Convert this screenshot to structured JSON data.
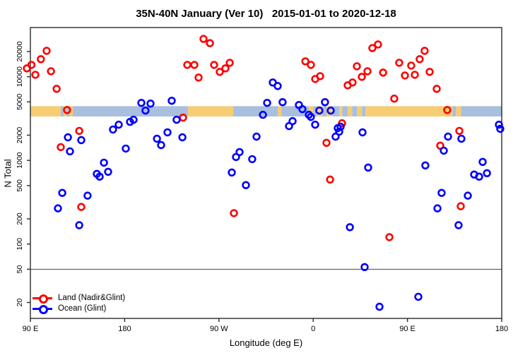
{
  "chart_data": {
    "type": "scatter",
    "title": "35N-40N January (Ver 10)   2015-01-01 to 2020-12-18",
    "xlabel": "Longitude (deg E)",
    "ylabel": "N Total",
    "x_axis": {
      "ticks": [
        90,
        180,
        270,
        360,
        450,
        540
      ],
      "tick_labels": [
        "90 E",
        "180",
        "90 W",
        "0",
        "90 E",
        "180"
      ],
      "range_deg_wrapped": [
        90,
        540
      ]
    },
    "y_axis": {
      "scale": "log",
      "ticks": [
        20,
        50,
        100,
        200,
        500,
        1000,
        2000,
        5000,
        10000,
        20000
      ],
      "tick_labels": [
        "20",
        "50",
        "100",
        "200",
        "500",
        "1000",
        "2000",
        "5000",
        "10000",
        "20000"
      ],
      "range": [
        13,
        38000
      ]
    },
    "reference_line_y": 50,
    "colors": {
      "land_points": "#FF0000",
      "ocean_points": "#0000FF",
      "land_strip": "#F6CD72",
      "ocean_strip": "#A9BFDD",
      "axis": "#2b2b2b"
    },
    "land_ocean_strip": {
      "value_range": [
        3350,
        4450
      ],
      "segments": [
        {
          "type": "land",
          "from": 90,
          "to": 119
        },
        {
          "type": "ocean",
          "from": 119,
          "to": 121.7
        },
        {
          "type": "land",
          "from": 121.7,
          "to": 124.4
        },
        {
          "type": "ocean",
          "from": 124.4,
          "to": 127.8
        },
        {
          "type": "land",
          "from": 127.8,
          "to": 130.5
        },
        {
          "type": "ocean",
          "from": 130.5,
          "to": 240.5
        },
        {
          "type": "land",
          "from": 240.5,
          "to": 283.7
        },
        {
          "type": "ocean",
          "from": 283.7,
          "to": 326.2
        },
        {
          "type": "land",
          "from": 326.2,
          "to": 329.6
        },
        {
          "type": "ocean",
          "from": 329.6,
          "to": 355.9
        },
        {
          "type": "land",
          "from": 355.9,
          "to": 360
        },
        {
          "type": "ocean",
          "from": 360,
          "to": 363.4
        },
        {
          "type": "land",
          "from": 363.4,
          "to": 368.8
        },
        {
          "type": "ocean",
          "from": 368.8,
          "to": 372.8
        },
        {
          "type": "land",
          "from": 372.8,
          "to": 378.2
        },
        {
          "type": "ocean",
          "from": 378.2,
          "to": 385
        },
        {
          "type": "land",
          "from": 385,
          "to": 387.7
        },
        {
          "type": "ocean",
          "from": 387.7,
          "to": 393.1
        },
        {
          "type": "land",
          "from": 393.1,
          "to": 397.2
        },
        {
          "type": "ocean",
          "from": 397.2,
          "to": 401.9
        },
        {
          "type": "land",
          "from": 401.9,
          "to": 406.6
        },
        {
          "type": "ocean",
          "from": 406.6,
          "to": 410
        },
        {
          "type": "land",
          "from": 410,
          "to": 493
        },
        {
          "type": "ocean",
          "from": 493,
          "to": 496.4
        },
        {
          "type": "land",
          "from": 496.4,
          "to": 501.1
        },
        {
          "type": "ocean",
          "from": 501.1,
          "to": 540
        }
      ]
    },
    "series": [
      {
        "name": "Land (Nadir&Glint)",
        "color": "#FF0000",
        "points": [
          [
            105.5,
            20400
          ],
          [
            100,
            16200
          ],
          [
            91,
            13850
          ],
          [
            86.6,
            12600
          ],
          [
            94.7,
            10560
          ],
          [
            109.6,
            11640
          ],
          [
            115,
            7175
          ],
          [
            125,
            4000
          ],
          [
            136.6,
            2250
          ],
          [
            119,
            1440
          ],
          [
            239.8,
            13850
          ],
          [
            235.7,
            3245
          ],
          [
            255.3,
            28300
          ],
          [
            261.4,
            25200
          ],
          [
            246.5,
            13850
          ],
          [
            265.4,
            13850
          ],
          [
            270.8,
            11420
          ],
          [
            276.2,
            12600
          ],
          [
            280.3,
            14680
          ],
          [
            250.6,
            9780
          ],
          [
            352.5,
            15260
          ],
          [
            357.8,
            13850
          ],
          [
            361.9,
            9400
          ],
          [
            366.6,
            10160
          ],
          [
            392.9,
            7900
          ],
          [
            397.6,
            8540
          ],
          [
            372.7,
            1620
          ],
          [
            387.5,
            2780
          ],
          [
            416.5,
            22000
          ],
          [
            421.9,
            24300
          ],
          [
            466.4,
            20400
          ],
          [
            461.7,
            16200
          ],
          [
            442.1,
            14680
          ],
          [
            453.6,
            13580
          ],
          [
            401.7,
            13320
          ],
          [
            411.8,
            11640
          ],
          [
            406.4,
            9970
          ],
          [
            426.7,
            11200
          ],
          [
            447.6,
            10360
          ],
          [
            457,
            10560
          ],
          [
            471.2,
            11420
          ],
          [
            477.9,
            7175
          ],
          [
            437.4,
            5470
          ],
          [
            488,
            4000
          ],
          [
            499.5,
            2250
          ],
          [
            481.3,
            1500
          ],
          [
            138.6,
            278
          ],
          [
            284.3,
            234
          ],
          [
            376.1,
            590
          ],
          [
            500.9,
            283
          ],
          [
            432.7,
            121
          ]
        ]
      },
      {
        "name": "Ocean (Glint)",
        "color": "#0000FF",
        "points": [
          [
            125.8,
            1887
          ],
          [
            127.8,
            1282
          ],
          [
            138.6,
            1747
          ],
          [
            168.9,
            2335
          ],
          [
            174.3,
            2673
          ],
          [
            185.1,
            2889
          ],
          [
            188.5,
            3062
          ],
          [
            195.9,
            4870
          ],
          [
            199.9,
            3937
          ],
          [
            204.7,
            4777
          ],
          [
            224.9,
            5160
          ],
          [
            229.6,
            3062
          ],
          [
            181.1,
            1385
          ],
          [
            160.2,
            940
          ],
          [
            164.2,
            731
          ],
          [
            153.4,
            690
          ],
          [
            156.1,
            639
          ],
          [
            210.8,
            1816
          ],
          [
            214.8,
            1525
          ],
          [
            220.9,
            2161
          ],
          [
            235.1,
            1887
          ],
          [
            120.4,
            409
          ],
          [
            144.6,
            379
          ],
          [
            116.3,
            267
          ],
          [
            136.6,
            168
          ],
          [
            321.4,
            8540
          ],
          [
            326.1,
            7750
          ],
          [
            316,
            4870
          ],
          [
            330.8,
            4966
          ],
          [
            346.4,
            4596
          ],
          [
            349.7,
            4093
          ],
          [
            312,
            3504
          ],
          [
            355.8,
            3504
          ],
          [
            357.8,
            3308
          ],
          [
            365.9,
            3937
          ],
          [
            371.3,
            4966
          ],
          [
            376.7,
            3937
          ],
          [
            361.9,
            2673
          ],
          [
            340.3,
            2945
          ],
          [
            336.9,
            2572
          ],
          [
            383.5,
            2427
          ],
          [
            305.9,
            1925
          ],
          [
            289.7,
            1257
          ],
          [
            286.3,
            1098
          ],
          [
            301.8,
            1036
          ],
          [
            282.3,
            717
          ],
          [
            295.8,
            506
          ],
          [
            381.4,
            1925
          ],
          [
            407.1,
            2161
          ],
          [
            386.2,
            2523
          ],
          [
            384.8,
            2203
          ],
          [
            537.3,
            2673
          ],
          [
            538.6,
            2381
          ],
          [
            488.7,
            1925
          ],
          [
            501.5,
            1816
          ],
          [
            484.7,
            1307
          ],
          [
            521.8,
            959
          ],
          [
            525.9,
            703
          ],
          [
            513.7,
            677
          ],
          [
            518.4,
            639
          ],
          [
            467.1,
            870
          ],
          [
            412.5,
            821
          ],
          [
            482.6,
            409
          ],
          [
            507.6,
            379
          ],
          [
            478.6,
            267
          ],
          [
            498.8,
            168
          ],
          [
            395,
            159
          ],
          [
            409.1,
            53
          ],
          [
            460.4,
            23.4
          ],
          [
            423.3,
            17.8
          ]
        ]
      }
    ],
    "legend": {
      "position": "bottom-left",
      "entries": [
        {
          "label": "Land (Nadir&Glint)",
          "color": "#FF0000"
        },
        {
          "label": "Ocean (Glint)",
          "color": "#0000FF"
        }
      ]
    },
    "grid": false
  }
}
